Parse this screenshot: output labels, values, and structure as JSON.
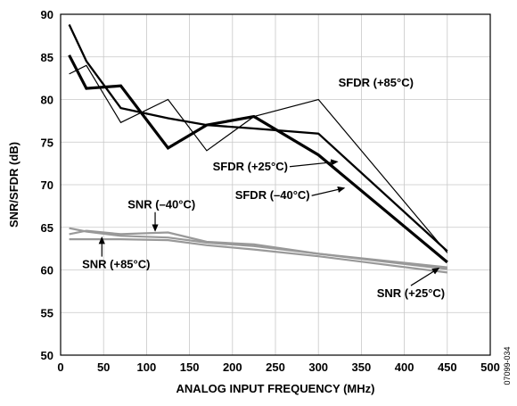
{
  "chart_data": {
    "type": "line",
    "xlabel": "ANALOG INPUT FREQUENCY (MHz)",
    "ylabel": "SNR/SFDR (dB)",
    "xlim": [
      0,
      500
    ],
    "ylim": [
      50,
      90
    ],
    "x_ticks": [
      0,
      50,
      100,
      150,
      200,
      250,
      300,
      350,
      400,
      450,
      500
    ],
    "y_ticks": [
      50,
      55,
      60,
      65,
      70,
      75,
      80,
      85,
      90
    ],
    "grid": true,
    "figure_id": "07099-034",
    "series": [
      {
        "name": "SFDR (+85°C)",
        "color": "#000000",
        "line_weight": "thin",
        "x": [
          10,
          30,
          70,
          125,
          170,
          225,
          300,
          450
        ],
        "y": [
          83,
          84,
          77.3,
          80,
          74,
          78,
          80,
          62
        ]
      },
      {
        "name": "SFDR (+25°C)",
        "color": "#000000",
        "line_weight": "bold",
        "x": [
          10,
          30,
          70,
          125,
          170,
          225,
          300,
          450
        ],
        "y": [
          88.8,
          84.5,
          79,
          77.8,
          77,
          76.6,
          76,
          62.2
        ]
      },
      {
        "name": "SFDR (–40°C)",
        "color": "#000000",
        "line_weight": "extra-bold",
        "x": [
          10,
          30,
          70,
          125,
          170,
          225,
          300,
          450
        ],
        "y": [
          85.2,
          81.3,
          81.6,
          74.3,
          77,
          78,
          73.5,
          60.9
        ]
      },
      {
        "name": "SNR (–40°C)",
        "color": "#999999",
        "line_weight": "medium",
        "x": [
          10,
          30,
          70,
          125,
          170,
          225,
          300,
          450
        ],
        "y": [
          64.2,
          64.6,
          64.2,
          64.4,
          63.3,
          63.0,
          61.9,
          60.1
        ]
      },
      {
        "name": "SNR (+85°C)",
        "color": "#999999",
        "line_weight": "medium",
        "x": [
          10,
          30,
          70,
          125,
          170,
          225,
          300,
          450
        ],
        "y": [
          63.6,
          63.6,
          63.6,
          63.5,
          62.9,
          62.4,
          61.6,
          59.7
        ]
      },
      {
        "name": "SNR (+25°C)",
        "color": "#999999",
        "line_weight": "medium",
        "x": [
          10,
          30,
          70,
          125,
          170,
          225,
          300,
          450
        ],
        "y": [
          64.9,
          64.5,
          64.0,
          63.8,
          63.2,
          62.8,
          61.9,
          60.3
        ]
      }
    ],
    "annotations": [
      {
        "text": "SFDR (+85°C)",
        "x": 367,
        "y": 81.5,
        "align": "middle"
      },
      {
        "text": "SFDR (+25°C)",
        "x": 177,
        "y": 71.7,
        "align": "start",
        "arrow_to": [
          322,
          72.7
        ]
      },
      {
        "text": "SFDR (–40°C)",
        "x": 203,
        "y": 68.3,
        "align": "start",
        "arrow_to": [
          330,
          69.6
        ]
      },
      {
        "text": "SNR (–40°C)",
        "x": 78,
        "y": 67.2,
        "align": "start",
        "arrow_to": [
          110,
          64.6
        ]
      },
      {
        "text": "SNR (+85°C)",
        "x": 25,
        "y": 60.2,
        "align": "start",
        "arrow_to": [
          48,
          63.8
        ]
      },
      {
        "text": "SNR (+25°C)",
        "x": 368,
        "y": 56.8,
        "align": "start",
        "arrow_to": [
          440,
          60.2
        ]
      }
    ]
  }
}
